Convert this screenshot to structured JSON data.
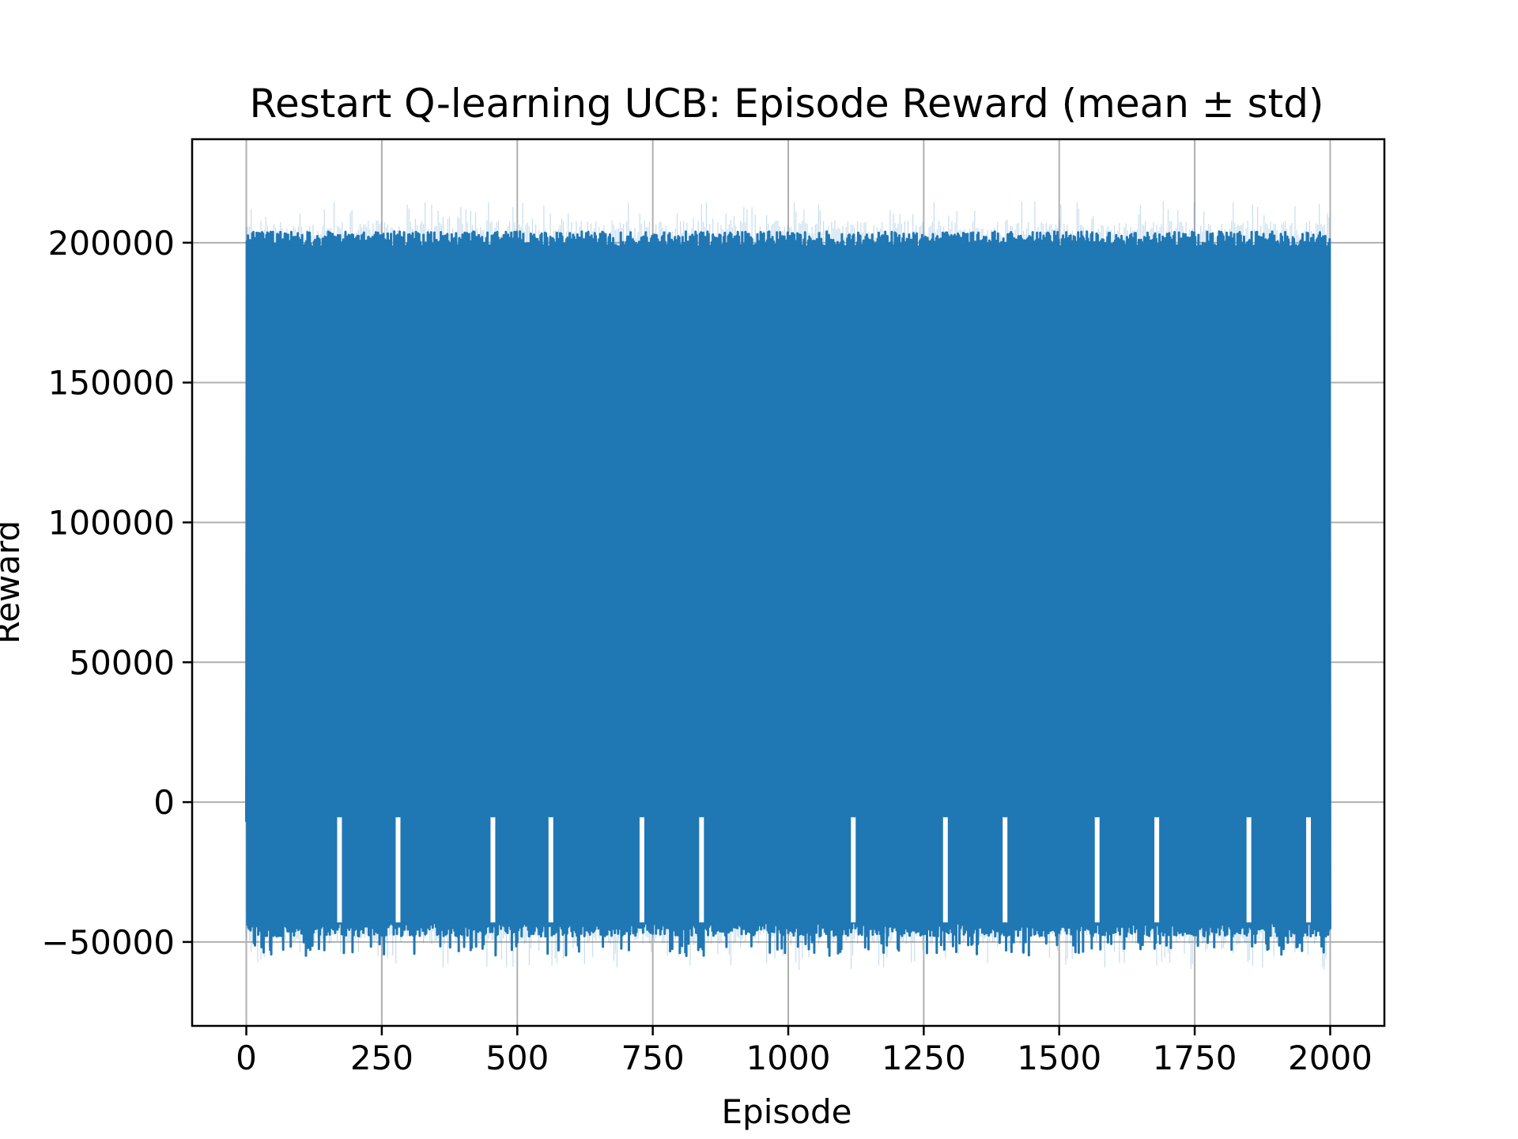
{
  "chart_data": {
    "type": "line",
    "title": "Restart Q-learning UCB: Episode Reward (mean ± std)",
    "xlabel": "Episode",
    "ylabel": "Reward",
    "xlim": [
      -100,
      2100
    ],
    "ylim": [
      -80000,
      237000
    ],
    "grid": true,
    "xticks": [
      0,
      250,
      500,
      750,
      1000,
      1250,
      1500,
      1750,
      2000
    ],
    "xtick_labels": [
      "0",
      "250",
      "500",
      "750",
      "1000",
      "1250",
      "1500",
      "1750",
      "2000"
    ],
    "yticks": [
      -50000,
      0,
      50000,
      100000,
      150000,
      200000
    ],
    "ytick_labels": [
      "−50000",
      "0",
      "50000",
      "100000",
      "150000",
      "200000"
    ],
    "series": [
      {
        "color": "#1f77b4",
        "episodes": [
          0,
          2000
        ],
        "mean_high_typical": 201000,
        "mean_low_typical": -45000,
        "mean_low_extreme": -55000,
        "std_band_high_extreme": 215000,
        "std_band_low_extreme": -60000,
        "start_value": -7000,
        "pattern": "alternating high/low rewards every episode"
      }
    ],
    "shallow_dip_episodes": [
      172,
      280,
      455,
      562,
      730,
      840,
      1120,
      1290,
      1400,
      1570,
      1680,
      1850,
      1960
    ]
  }
}
